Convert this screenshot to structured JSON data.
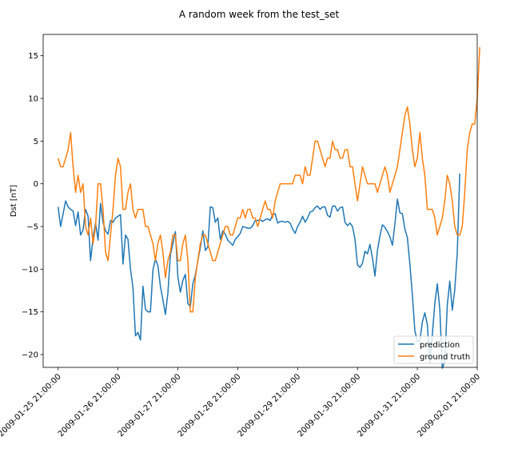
{
  "chart_data": {
    "type": "line",
    "title": "A random week from the test_set",
    "xlabel": "",
    "ylabel": "Dst [nT]",
    "xlim": [
      "2009-01-25 15:00:00",
      "2009-02-01 21:00:00"
    ],
    "ylim": [
      -21.5,
      17.5
    ],
    "x_ticks": [
      "2009-01-25 21:00:00",
      "2009-01-26 21:00:00",
      "2009-01-27 21:00:00",
      "2009-01-28 21:00:00",
      "2009-01-29 21:00:00",
      "2009-01-30 21:00:00",
      "2009-01-31 21:00:00",
      "2009-02-01 21:00:00"
    ],
    "y_ticks": [
      -20,
      -15,
      -10,
      -5,
      0,
      5,
      10,
      15
    ],
    "grid": false,
    "legend_position": "lower right",
    "x_start": "2009-01-25 21:00:00",
    "x_step_hours": 1,
    "series": [
      {
        "name": "prediction",
        "color": "#1f77b4",
        "values": [
          -2.7,
          -5.0,
          -3.5,
          -2.0,
          -2.7,
          -3.0,
          -3.2,
          -4.9,
          -3.3,
          -6.0,
          -5.4,
          -3.0,
          -3.8,
          -9.0,
          -6.3,
          -4.6,
          -6.6,
          -2.3,
          -4.5,
          -5.5,
          -5.9,
          -4.3,
          -4.5,
          -4.0,
          -3.8,
          -3.6,
          -9.4,
          -6.0,
          -6.5,
          -10.0,
          -12.2,
          -17.8,
          -17.4,
          -18.3,
          -12.0,
          -14.7,
          -15.0,
          -15.0,
          -10.1,
          -8.8,
          -9.6,
          -12.0,
          -13.6,
          -15.3,
          -12.8,
          -8.3,
          -7.0,
          -5.6,
          -10.9,
          -12.7,
          -11.3,
          -10.6,
          -14.0,
          -14.4,
          -11.7,
          -10.7,
          -9.0,
          -7.5,
          -5.5,
          -7.8,
          -7.4,
          -2.7,
          -2.8,
          -4.5,
          -4.0,
          -6.5,
          -5.5,
          -5.9,
          -6.6,
          -6.9,
          -7.2,
          -6.5,
          -6.2,
          -5.8,
          -5.0,
          -5.1,
          -5.2,
          -5.2,
          -4.9,
          -4.3,
          -4.3,
          -4.2,
          -4.4,
          -4.2,
          -4.1,
          -4.3,
          -3.6,
          -3.5,
          -4.6,
          -4.4,
          -4.4,
          -4.5,
          -4.4,
          -4.6,
          -5.3,
          -5.8,
          -5.0,
          -4.5,
          -3.8,
          -4.5,
          -4.0,
          -3.3,
          -3.2,
          -2.8,
          -2.6,
          -3.0,
          -2.7,
          -2.7,
          -3.7,
          -3.9,
          -2.6,
          -2.6,
          -3.2,
          -2.8,
          -2.7,
          -4.5,
          -4.9,
          -4.6,
          -5.0,
          -6.5,
          -9.5,
          -9.8,
          -9.3,
          -7.9,
          -8.2,
          -7.1,
          -8.7,
          -10.8,
          -7.8,
          -6.1,
          -4.8,
          -5.1,
          -5.6,
          -6.2,
          -7.2,
          -4.7,
          -1.8,
          -3.4,
          -3.5,
          -5.3,
          -6.3,
          -9.4,
          -13.0,
          -17.2,
          -18.5,
          -18.4,
          -16.2,
          -15.1,
          -16.5,
          -21.0,
          -17.7,
          -14.0,
          -11.7,
          -14.7,
          -21.6,
          -20.8,
          -14.2,
          -11.4,
          -14.8,
          -12.4,
          -8.1,
          1.2
        ]
      },
      {
        "name": "ground truth",
        "color": "#ff7f0e",
        "values": [
          3,
          2,
          2,
          3,
          4,
          6,
          2,
          -1,
          1,
          -1,
          0,
          -5,
          -6,
          -4,
          -7,
          -5,
          0,
          0,
          -3,
          -8,
          -9,
          -6,
          -3,
          1,
          3,
          2,
          -3,
          -3,
          -1,
          0,
          -3,
          -4,
          -3,
          -3,
          -3,
          -5,
          -5,
          -6,
          -7,
          -9,
          -7,
          -6,
          -8,
          -11,
          -9,
          -8,
          -6,
          -6,
          -9,
          -9,
          -7,
          -6,
          -9,
          -15,
          -15,
          -11,
          -9,
          -7,
          -6,
          -6,
          -7,
          -8,
          -9,
          -9,
          -8,
          -7,
          -6,
          -5,
          -5,
          -6,
          -6,
          -5,
          -4,
          -4,
          -3,
          -4,
          -3,
          -3,
          -4,
          -4,
          -5,
          -4,
          -3,
          -2,
          -3,
          -3,
          -4,
          -2,
          -1,
          0,
          0,
          0,
          0,
          0,
          0,
          1,
          1,
          1,
          0,
          2,
          1,
          1,
          3,
          5,
          5,
          4,
          3,
          2,
          3,
          3,
          5,
          4,
          4,
          3,
          3,
          4,
          4,
          2,
          2,
          0,
          -2,
          0,
          2,
          1,
          0,
          0,
          0,
          0,
          -1,
          0,
          1,
          2,
          1,
          -1,
          0,
          1,
          2,
          4,
          6,
          8,
          9,
          7,
          4,
          2,
          3,
          6,
          3,
          1,
          -3,
          -3,
          -3,
          -4,
          -6,
          -5,
          -4,
          -2,
          1,
          0,
          -2,
          -5,
          -6,
          -6,
          -5,
          -1,
          4,
          6,
          7,
          7,
          10,
          16
        ]
      }
    ]
  }
}
